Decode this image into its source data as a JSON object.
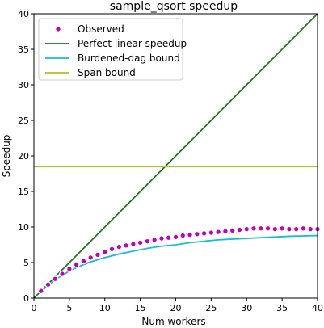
{
  "chart_data": {
    "type": "line",
    "title": "sample_qsort speedup",
    "xlabel": "Num workers",
    "ylabel": "Speedup",
    "xlim": [
      0,
      40
    ],
    "ylim": [
      0,
      40
    ],
    "xticks": [
      0,
      5,
      10,
      15,
      20,
      25,
      30,
      35,
      40
    ],
    "yticks": [
      0,
      5,
      10,
      15,
      20,
      25,
      30,
      35,
      40
    ],
    "legend_position": "top-left",
    "series": [
      {
        "name": "Observed",
        "kind": "scatter",
        "color": "#c000c0",
        "x": [
          1,
          2,
          3,
          4,
          5,
          6,
          7,
          8,
          9,
          10,
          11,
          12,
          13,
          14,
          15,
          16,
          17,
          18,
          19,
          20,
          21,
          22,
          23,
          24,
          25,
          26,
          27,
          28,
          29,
          30,
          31,
          32,
          33,
          34,
          35,
          36,
          37,
          38,
          39,
          40
        ],
        "y": [
          1.0,
          1.9,
          2.7,
          3.4,
          4.1,
          4.7,
          5.2,
          5.7,
          6.1,
          6.5,
          6.9,
          7.2,
          7.4,
          7.6,
          7.8,
          8.0,
          8.2,
          8.4,
          8.5,
          8.6,
          8.8,
          8.9,
          9.0,
          9.1,
          9.2,
          9.3,
          9.4,
          9.5,
          9.6,
          9.7,
          9.8,
          9.8,
          9.8,
          9.7,
          9.8,
          9.7,
          9.7,
          9.8,
          9.7,
          9.7
        ]
      },
      {
        "name": "Perfect linear speedup",
        "kind": "line",
        "color": "#1a7a1a",
        "x": [
          0,
          40
        ],
        "y": [
          0,
          40
        ]
      },
      {
        "name": "Burdened-dag bound",
        "kind": "line",
        "color": "#17becf",
        "x": [
          1,
          2,
          3,
          4,
          5,
          6,
          7,
          8,
          9,
          10,
          12,
          14,
          16,
          18,
          20,
          22,
          24,
          26,
          28,
          30,
          32,
          34,
          36,
          38,
          40
        ],
        "y": [
          0.9,
          1.8,
          2.6,
          3.2,
          3.8,
          4.3,
          4.7,
          5.1,
          5.4,
          5.7,
          6.2,
          6.6,
          7.0,
          7.3,
          7.5,
          7.8,
          8.0,
          8.2,
          8.3,
          8.4,
          8.5,
          8.6,
          8.7,
          8.75,
          8.8
        ]
      },
      {
        "name": "Span bound",
        "kind": "line",
        "color": "#bcbd22",
        "x": [
          0,
          40
        ],
        "y": [
          18.5,
          18.5
        ]
      }
    ]
  }
}
